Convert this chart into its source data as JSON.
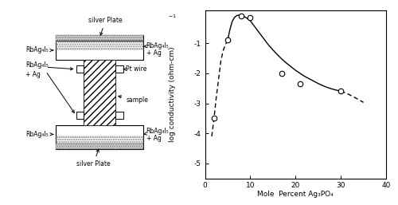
{
  "scatter_x": [
    2,
    5,
    8,
    10,
    17,
    21,
    30
  ],
  "scatter_y": [
    -3.5,
    -0.9,
    -0.1,
    -0.15,
    -2.0,
    -2.35,
    -2.6
  ],
  "curve_solid_x": [
    5.0,
    5.5,
    6.0,
    6.5,
    7.0,
    7.5,
    8.0,
    8.5,
    9.0,
    9.5,
    10.0,
    11.0,
    12.0,
    13.0,
    14.0,
    15.0,
    16.0,
    17.0,
    18.0,
    19.0,
    20.0,
    21.0,
    22.0,
    23.0,
    24.0,
    25.0,
    26.0,
    27.0,
    28.0,
    29.0,
    30.0
  ],
  "curve_solid_y": [
    -0.9,
    -0.55,
    -0.28,
    -0.14,
    -0.08,
    -0.06,
    -0.07,
    -0.1,
    -0.14,
    -0.19,
    -0.25,
    -0.45,
    -0.65,
    -0.85,
    -1.05,
    -1.22,
    -1.38,
    -1.53,
    -1.66,
    -1.78,
    -1.9,
    -2.0,
    -2.1,
    -2.18,
    -2.26,
    -2.34,
    -2.41,
    -2.47,
    -2.52,
    -2.56,
    -2.6
  ],
  "curve_dashed_x": [
    1.5,
    2.0,
    2.5,
    3.0,
    3.5,
    4.0,
    4.5,
    5.0
  ],
  "curve_dashed_y": [
    -4.1,
    -3.5,
    -2.8,
    -2.2,
    -1.6,
    -1.25,
    -1.05,
    -0.9
  ],
  "curve_dashed2_x": [
    30.0,
    31.0,
    32.0,
    33.0,
    34.0,
    35.0
  ],
  "curve_dashed2_y": [
    -2.6,
    -2.65,
    -2.72,
    -2.8,
    -2.88,
    -2.97
  ],
  "xlim": [
    0,
    40
  ],
  "ylim": [
    -5.5,
    0.1
  ],
  "yticks": [
    -5,
    -4,
    -3,
    -2,
    -1
  ],
  "xticks": [
    0,
    10,
    20,
    30,
    40
  ],
  "xlabel": "Mole  Percent Ag₃PO₄",
  "ylabel": "log conductivity (ohm-cm)",
  "ylabel_super": "-1",
  "background_color": "#ffffff",
  "line_color": "#000000",
  "scatter_color": "#ffffff",
  "scatter_edge_color": "#000000",
  "diagram": {
    "top_plate_label": "silver Plate",
    "bot_plate_label": "silver Plate",
    "tl_label": "RbAg₄I₅",
    "tr_label1": "RbAg₄I₅",
    "tr_label2": "+ Ag",
    "ml_label1": "RbAg₄I₅",
    "ml_label2": "+ Ag",
    "mr_label1": "Pt wire",
    "mr_label2": "sample",
    "bl_label": "RbAg₄I₅",
    "br_label1": "RbAg₄I₅",
    "br_label2": "+ Ag"
  }
}
